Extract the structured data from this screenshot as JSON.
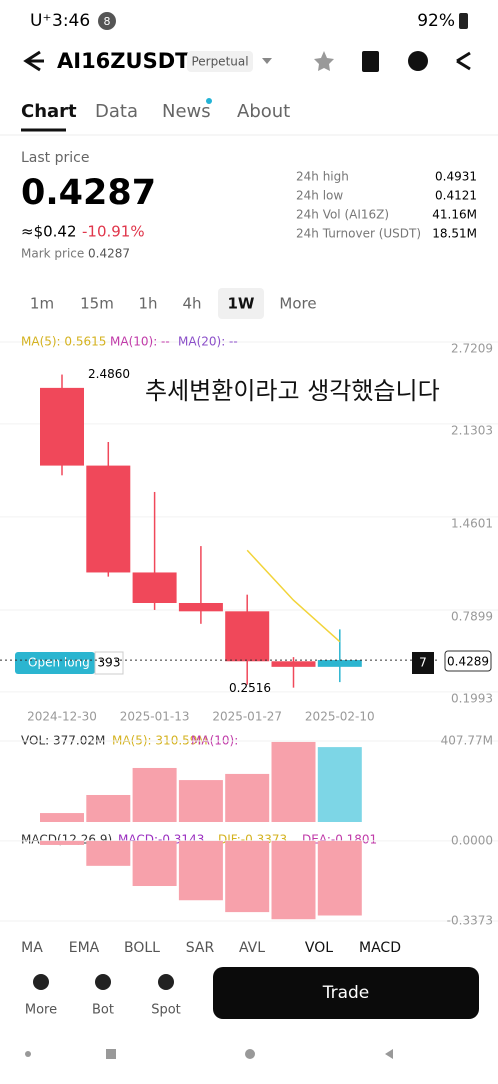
{
  "status": {
    "carrier": "U⁺",
    "time": "3:46",
    "badge": "8",
    "battery": "92%"
  },
  "header": {
    "symbol": "AI16ZUSDT",
    "tag": "Perpetual"
  },
  "tabs": [
    "Chart",
    "Data",
    "News",
    "About"
  ],
  "price": {
    "label": "Last price",
    "value": "0.4287",
    "usd": "≈$0.42",
    "change": "-10.91%",
    "mark_label": "Mark price",
    "mark": "0.4287"
  },
  "stats": [
    {
      "label": "24h high",
      "value": "0.4931"
    },
    {
      "label": "24h low",
      "value": "0.4121"
    },
    {
      "label": "24h Vol (AI16Z)",
      "value": "41.16M"
    },
    {
      "label": "24h Turnover (USDT)",
      "value": "18.51M"
    }
  ],
  "intervals": [
    "1m",
    "15m",
    "1h",
    "4h",
    "1W",
    "More"
  ],
  "chart_data": {
    "type": "candlestick",
    "categories": [
      "2024-12-30",
      null,
      "2025-01-13",
      null,
      "2025-01-27",
      null,
      "2025-02-10"
    ],
    "open": [
      2.39,
      1.83,
      1.06,
      0.84,
      0.78,
      0.42,
      0.38
    ],
    "high": [
      2.486,
      2.0,
      1.64,
      1.25,
      0.9,
      0.45,
      0.65
    ],
    "low": [
      1.76,
      1.03,
      0.79,
      0.69,
      0.2516,
      0.23,
      0.27
    ],
    "close": [
      1.83,
      1.06,
      0.84,
      0.78,
      0.42,
      0.38,
      0.4287
    ],
    "annotations": [
      "2.4860",
      "0.2516"
    ],
    "ylim": [
      0.105,
      2.771
    ],
    "yticks": [
      2.7209,
      2.1303,
      1.4601,
      0.7899,
      0.1993
    ],
    "legend": [
      "MA(5): 0.5615",
      "MA(10): --",
      "MA(20): --"
    ],
    "series": [
      {
        "name": "MA(5)",
        "color": "#f2d43a",
        "values": [
          null,
          null,
          null,
          null,
          1.22,
          0.86,
          0.5615
        ]
      }
    ],
    "current": "0.4289",
    "order_label": "Open long",
    "order_qty": "393",
    "order_count": "7",
    "overlay": "추세변환이라고 생각했습니다"
  },
  "volume": {
    "legend": [
      "VOL: 377.02M",
      "MA(5): 310.59M",
      "MA(10): --"
    ],
    "values": [
      45,
      136,
      272,
      211,
      242,
      403,
      377.02
    ],
    "ylim": [
      0,
      407.77
    ],
    "yticks": [
      {
        "value": 407.77,
        "label": "407.77M"
      }
    ]
  },
  "macd": {
    "legend": [
      "MACD(12,26,9)",
      "MACD:-0.3143",
      "DIF:-0.3373",
      "DEA:-0.1801"
    ],
    "values": [
      -0.017,
      -0.105,
      -0.19,
      -0.25,
      -0.3,
      -0.33,
      -0.3143
    ],
    "ylim": [
      -0.367,
      0.025
    ],
    "yticks": [
      {
        "value": 0,
        "label": "0.0000"
      },
      {
        "value": -0.3373,
        "label": "-0.3373"
      }
    ]
  },
  "indicators": [
    "MA",
    "EMA",
    "BOLL",
    "SAR",
    "AVL",
    "VOL",
    "MACD"
  ],
  "nav": [
    "More",
    "Bot",
    "Spot"
  ],
  "trade": "Trade"
}
